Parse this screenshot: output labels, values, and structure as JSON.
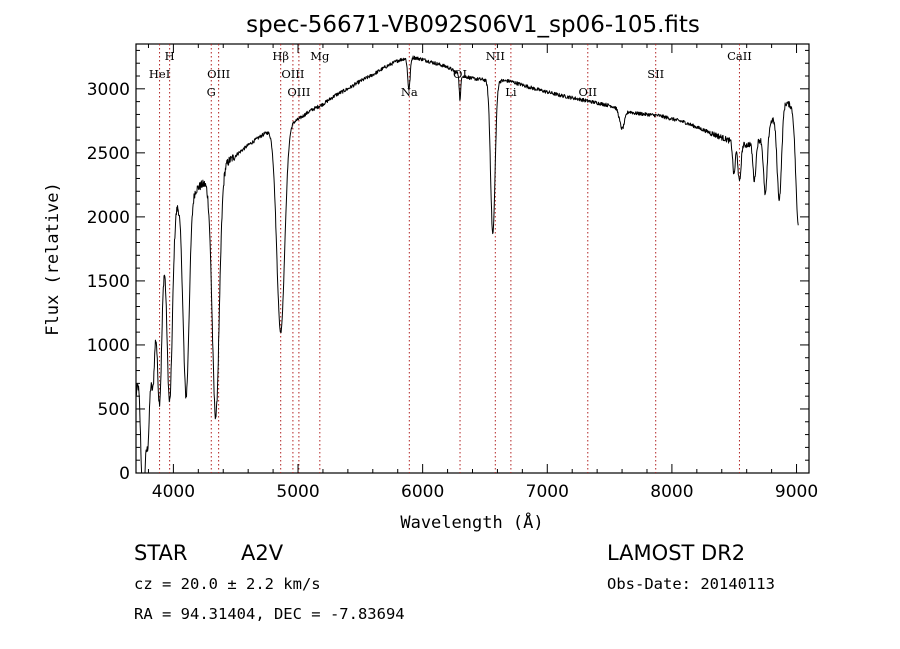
{
  "colors": {
    "spectrum": "#000000",
    "line_marker": "#b22222",
    "axis": "#000000"
  },
  "chart_data": {
    "type": "line",
    "title": "spec-56671-VB092S06V1_sp06-105.fits",
    "xlabel": "Wavelength (Å)",
    "ylabel": "Flux (relative)",
    "xlim": [
      3700,
      9100
    ],
    "ylim": [
      0,
      3350
    ],
    "xticks": [
      4000,
      5000,
      6000,
      7000,
      8000,
      9000
    ],
    "yticks": [
      0,
      500,
      1000,
      1500,
      2000,
      2500,
      3000
    ],
    "grid": false,
    "series": [
      {
        "continuum": [
          [
            3700,
            600
          ],
          [
            3760,
            1150
          ],
          [
            3830,
            1700
          ],
          [
            3900,
            1950
          ],
          [
            4000,
            2100
          ],
          [
            4100,
            2150
          ],
          [
            4200,
            2230
          ],
          [
            4300,
            2300
          ],
          [
            4400,
            2400
          ],
          [
            4500,
            2480
          ],
          [
            4600,
            2560
          ],
          [
            4700,
            2630
          ],
          [
            4800,
            2690
          ],
          [
            4900,
            2710
          ],
          [
            5000,
            2760
          ],
          [
            5100,
            2830
          ],
          [
            5200,
            2880
          ],
          [
            5300,
            2950
          ],
          [
            5400,
            3000
          ],
          [
            5500,
            3060
          ],
          [
            5600,
            3110
          ],
          [
            5700,
            3170
          ],
          [
            5800,
            3220
          ],
          [
            5900,
            3250
          ],
          [
            6000,
            3230
          ],
          [
            6100,
            3200
          ],
          [
            6200,
            3170
          ],
          [
            6300,
            3110
          ],
          [
            6400,
            3080
          ],
          [
            6500,
            3070
          ],
          [
            6700,
            3060
          ],
          [
            6900,
            3000
          ],
          [
            7100,
            2950
          ],
          [
            7300,
            2910
          ],
          [
            7500,
            2870
          ],
          [
            7700,
            2810
          ],
          [
            7900,
            2790
          ],
          [
            8100,
            2740
          ],
          [
            8300,
            2660
          ],
          [
            8500,
            2580
          ],
          [
            8600,
            2560
          ],
          [
            8700,
            2600
          ],
          [
            8800,
            2750
          ],
          [
            8900,
            2900
          ],
          [
            9000,
            2850
          ]
        ],
        "absorptions": [
          [
            3750,
            900,
            15
          ],
          [
            3770,
            750,
            15
          ],
          [
            3798,
            1000,
            14
          ],
          [
            3835,
            1000,
            16
          ],
          [
            3889,
            1350,
            20
          ],
          [
            3970,
            1500,
            22
          ],
          [
            4102,
            1550,
            24
          ],
          [
            4340,
            1900,
            28
          ],
          [
            4861,
            1600,
            32
          ],
          [
            5890,
            250,
            10
          ],
          [
            6300,
            200,
            6
          ],
          [
            6563,
            1200,
            18
          ],
          [
            7600,
            150,
            20
          ],
          [
            8498,
            250,
            10
          ],
          [
            8542,
            300,
            12
          ],
          [
            8662,
            300,
            12
          ],
          [
            8750,
            500,
            15
          ],
          [
            8862,
            700,
            18
          ],
          [
            9014,
            900,
            20
          ]
        ]
      }
    ],
    "line_markers": [
      {
        "label": "HeI",
        "wavelength": 3889,
        "row": 1
      },
      {
        "label": "H",
        "wavelength": 3970,
        "row": 0
      },
      {
        "label": "OIII",
        "wavelength": 4363,
        "row": 1
      },
      {
        "label": "G",
        "wavelength": 4304,
        "row": 2
      },
      {
        "label": "Hβ",
        "wavelength": 4861,
        "row": 0
      },
      {
        "label": "OIII",
        "wavelength": 4959,
        "row": 1
      },
      {
        "label": "OIII",
        "wavelength": 5007,
        "row": 2
      },
      {
        "label": "Mg",
        "wavelength": 5175,
        "row": 0
      },
      {
        "label": "Na",
        "wavelength": 5893,
        "row": 2
      },
      {
        "label": "OI",
        "wavelength": 6300,
        "row": 1
      },
      {
        "label": "NII",
        "wavelength": 6583,
        "row": 0
      },
      {
        "label": "Li",
        "wavelength": 6708,
        "row": 2
      },
      {
        "label": "OII",
        "wavelength": 7325,
        "row": 2
      },
      {
        "label": "SII",
        "wavelength": 7870,
        "row": 1
      },
      {
        "label": "CaII",
        "wavelength": 8542,
        "row": 0
      }
    ]
  },
  "info": {
    "object_class": "STAR",
    "subclass": "A2V",
    "survey": "LAMOST DR2",
    "cz": "cz = 20.0 ± 2.2 km/s",
    "obs_date": "Obs-Date: 20140113",
    "coords": "RA =  94.31404, DEC =  -7.83694"
  }
}
